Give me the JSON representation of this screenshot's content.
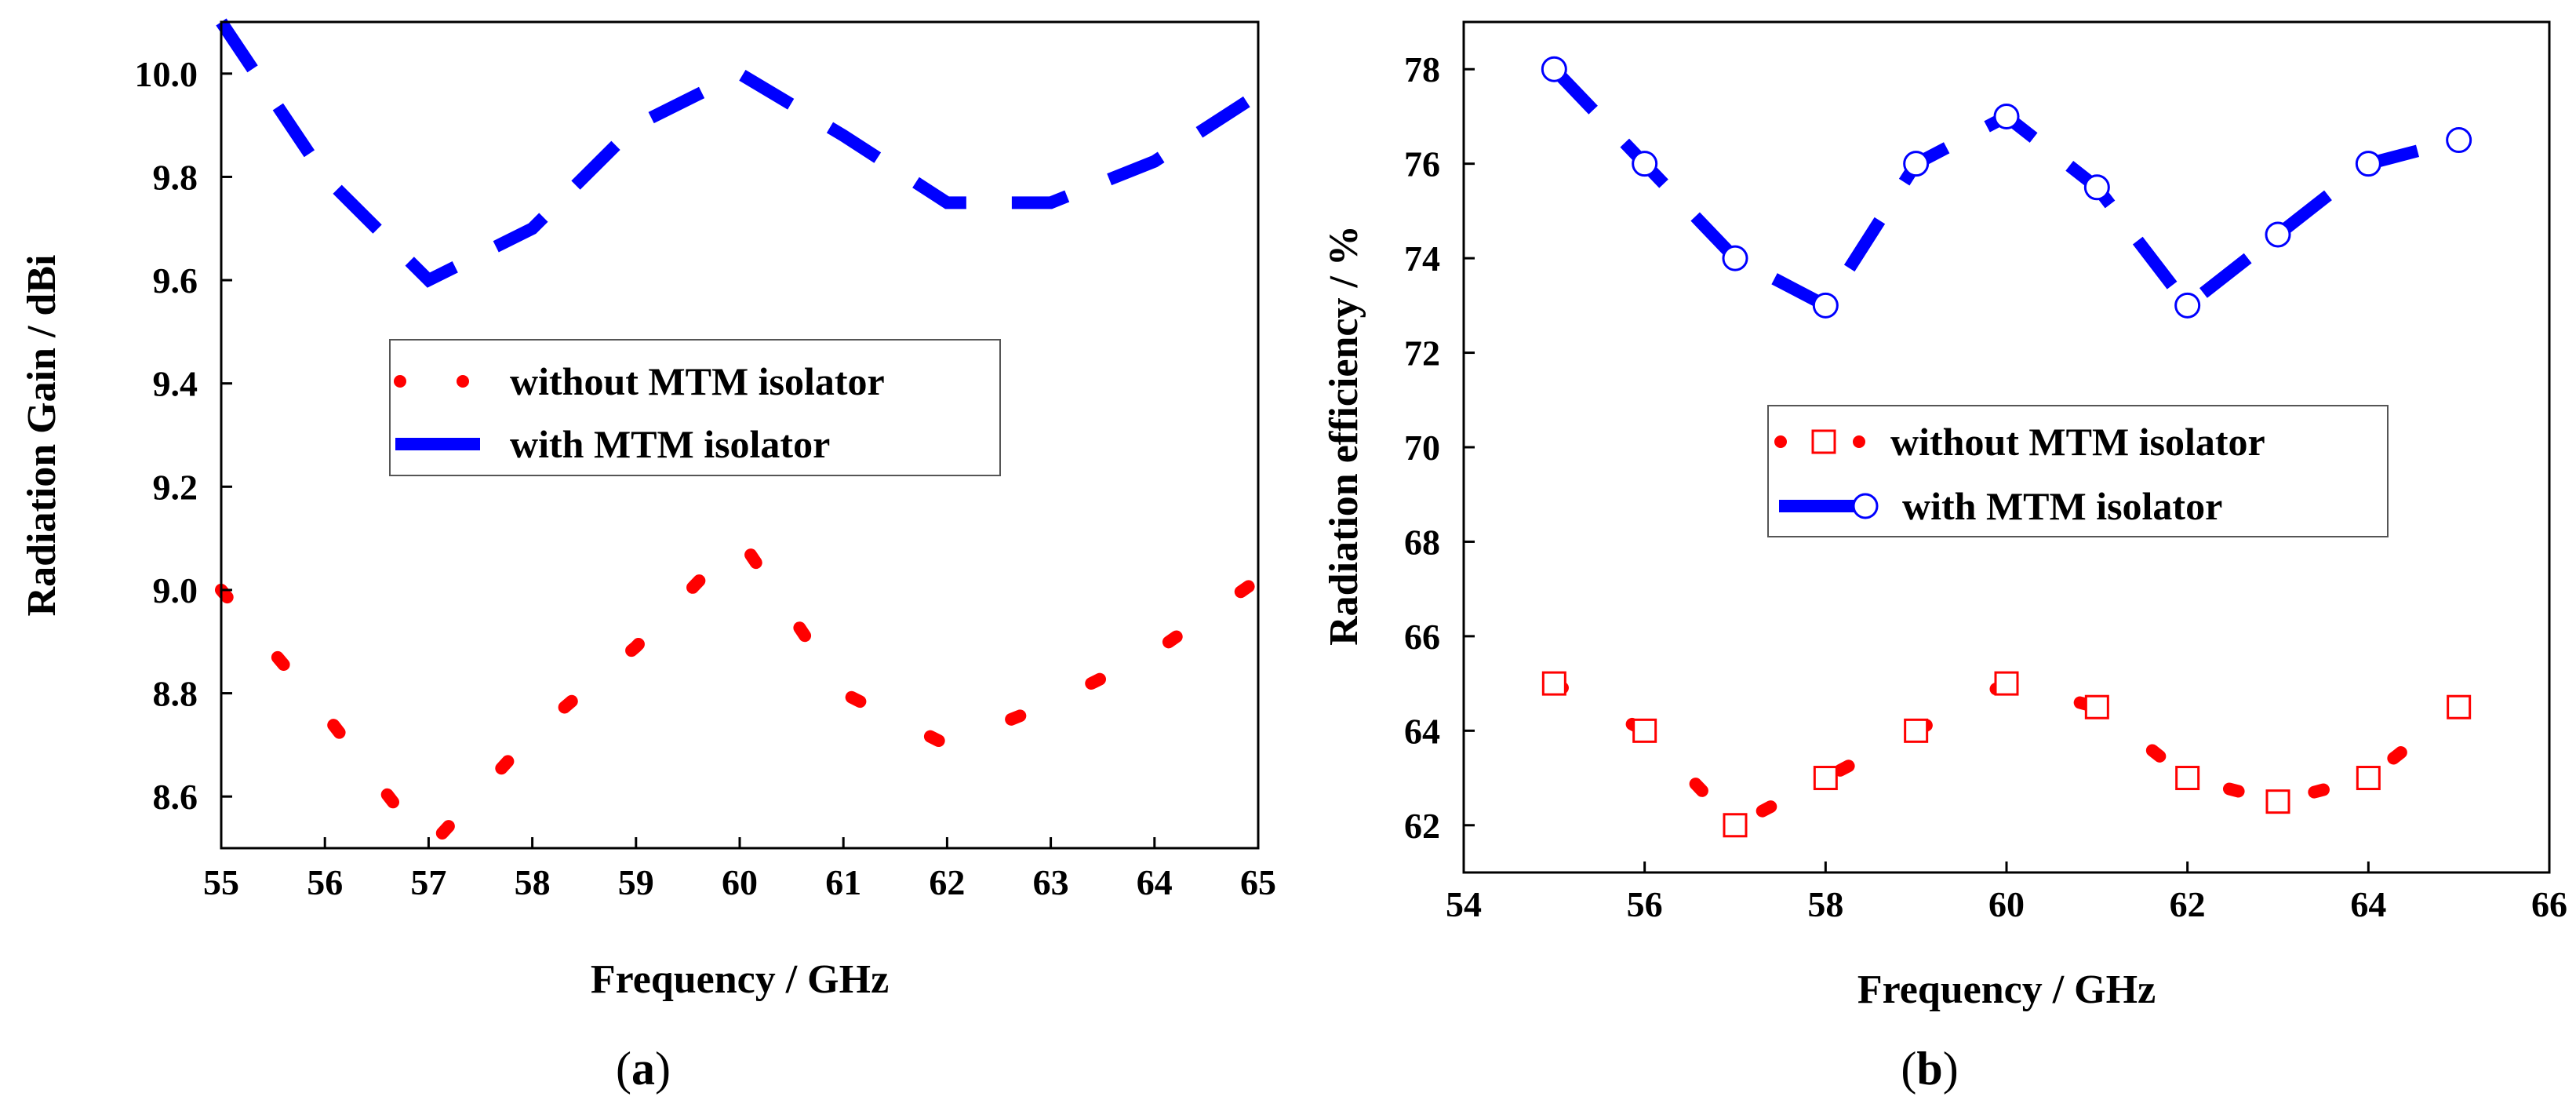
{
  "chart_data": [
    {
      "type": "line",
      "panel_label": "a",
      "xlabel": "Frequency / GHz",
      "ylabel": "Radiation Gain / dBi",
      "xlim": [
        55,
        65
      ],
      "ylim": [
        8.5,
        10.1
      ],
      "xticks": [
        55,
        56,
        57,
        58,
        59,
        60,
        61,
        62,
        63,
        64,
        65
      ],
      "yticks": [
        8.6,
        8.8,
        9.0,
        9.2,
        9.4,
        9.6,
        9.8,
        10.0
      ],
      "ytick_labels": [
        "8.6",
        "8.8",
        "9.0",
        "9.2",
        "9.4",
        "9.6",
        "9.8",
        "10.0"
      ],
      "legend_position": "center",
      "series": [
        {
          "name": "without MTM isolator",
          "color": "#ff0000",
          "style": "dotted",
          "x": [
            55,
            56,
            57,
            58,
            59,
            60,
            60.5,
            61,
            62,
            63,
            64,
            65
          ],
          "values": [
            9.0,
            8.76,
            8.5,
            8.72,
            8.89,
            9.1,
            8.95,
            8.8,
            8.7,
            8.78,
            8.88,
            9.02
          ]
        },
        {
          "name": "with MTM isolator",
          "color": "#0000ff",
          "style": "dashed",
          "x": [
            55,
            56,
            57,
            58,
            59,
            60,
            61,
            62,
            63,
            64,
            65
          ],
          "values": [
            10.1,
            9.8,
            9.6,
            9.7,
            9.9,
            10.0,
            9.88,
            9.75,
            9.75,
            9.83,
            9.96
          ]
        }
      ]
    },
    {
      "type": "line",
      "panel_label": "b",
      "xlabel": "Frequency / GHz",
      "ylabel": "Radiation efficiency / %",
      "xlim": [
        54,
        66
      ],
      "ylim": [
        61,
        79
      ],
      "xticks": [
        54,
        56,
        58,
        60,
        62,
        64,
        66
      ],
      "yticks": [
        62,
        64,
        66,
        68,
        70,
        72,
        74,
        76,
        78
      ],
      "ytick_labels": [
        "62",
        "64",
        "66",
        "68",
        "70",
        "72",
        "74",
        "76",
        "78"
      ],
      "legend_position": "center-right",
      "series": [
        {
          "name": "without MTM isolator",
          "color": "#ff0000",
          "style": "dotted",
          "marker": "square-open",
          "x": [
            55,
            56,
            57,
            58,
            59,
            60,
            61,
            62,
            63,
            64,
            65
          ],
          "values": [
            65,
            64,
            62,
            63,
            64,
            65,
            64.5,
            63,
            62.5,
            63,
            64.5
          ]
        },
        {
          "name": "with MTM isolator",
          "color": "#0000ff",
          "style": "dashed",
          "marker": "circle-open",
          "x": [
            55,
            56,
            57,
            58,
            59,
            60,
            61,
            62,
            63,
            64,
            65
          ],
          "values": [
            78,
            76,
            74,
            73,
            76,
            77,
            75.5,
            73,
            74.5,
            76,
            76.5
          ]
        }
      ]
    }
  ]
}
